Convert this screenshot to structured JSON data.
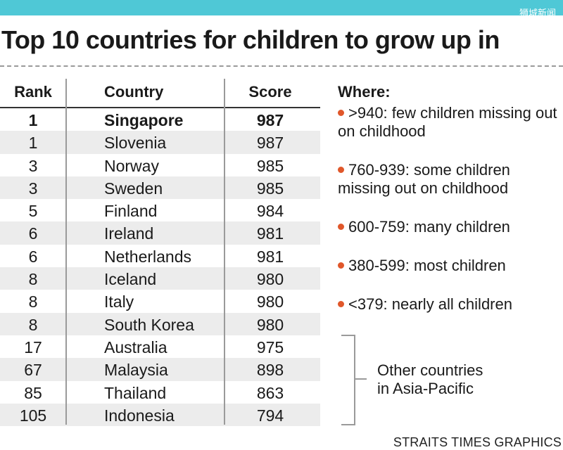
{
  "watermark": "狮城新闻",
  "title": "Top 10 countries for children to grow up in",
  "credit": "STRAITS TIMES GRAPHICS",
  "chart_data": {
    "type": "table",
    "columns": [
      "Rank",
      "Country",
      "Score"
    ],
    "rows": [
      {
        "rank": "1",
        "country": "Singapore",
        "score": "987",
        "bold": true
      },
      {
        "rank": "1",
        "country": "Slovenia",
        "score": "987"
      },
      {
        "rank": "3",
        "country": "Norway",
        "score": "985"
      },
      {
        "rank": "3",
        "country": "Sweden",
        "score": "985"
      },
      {
        "rank": "5",
        "country": "Finland",
        "score": "984"
      },
      {
        "rank": "6",
        "country": "Ireland",
        "score": "981"
      },
      {
        "rank": "6",
        "country": "Netherlands",
        "score": "981"
      },
      {
        "rank": "8",
        "country": "Iceland",
        "score": "980"
      },
      {
        "rank": "8",
        "country": "Italy",
        "score": "980"
      },
      {
        "rank": "8",
        "country": "South Korea",
        "score": "980"
      },
      {
        "rank": "17",
        "country": "Australia",
        "score": "975"
      },
      {
        "rank": "67",
        "country": "Malaysia",
        "score": "898"
      },
      {
        "rank": "85",
        "country": "Thailand",
        "score": "863"
      },
      {
        "rank": "105",
        "country": "Indonesia",
        "score": "794"
      }
    ]
  },
  "legend": {
    "title": "Where",
    "dot_color": "#e0572a",
    "items": [
      ">940: few children missing out on childhood",
      "760-939: some children missing out on childhood",
      "600-759: many children",
      "380-599: most children",
      "<379: nearly all children"
    ]
  },
  "annotation": {
    "line1": "Other countries",
    "line2": "in Asia-Pacific"
  },
  "colors": {
    "topbar": "#4fc8d6",
    "row_shade": "#ececec",
    "divider": "#9a9a9a"
  }
}
